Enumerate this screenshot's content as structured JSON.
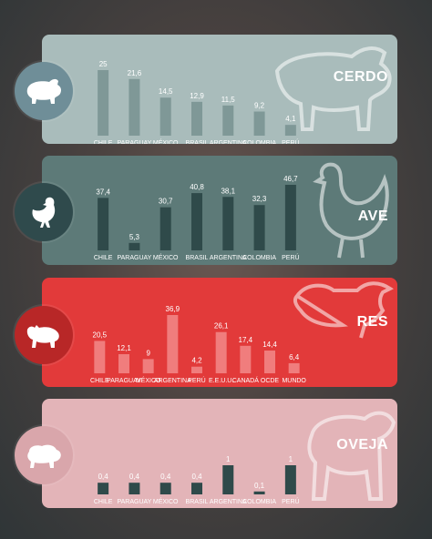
{
  "chart_data": [
    {
      "type": "bar",
      "title": "CERDO",
      "categories": [
        "CHILE",
        "PARAGUAY",
        "MÉXICO",
        "BRASIL",
        "ARGENTINA",
        "COLOMBIA",
        "PERÚ"
      ],
      "values": [
        25,
        21.6,
        14.5,
        12.9,
        11.5,
        9.2,
        4.1
      ],
      "value_labels": [
        "25",
        "21,6",
        "14,5",
        "12,9",
        "11,5",
        "9,2",
        "4,1"
      ],
      "icon": "pig-icon"
    },
    {
      "type": "bar",
      "title": "AVE",
      "categories": [
        "CHILE",
        "PARAGUAY",
        "MÉXICO",
        "BRASIL",
        "ARGENTINA",
        "COLOMBIA",
        "PERÚ"
      ],
      "values": [
        37.4,
        5.3,
        30.7,
        40.8,
        38.1,
        32.3,
        46.7
      ],
      "value_labels": [
        "37,4",
        "5,3",
        "30,7",
        "40,8",
        "38,1",
        "32,3",
        "46,7"
      ],
      "icon": "chicken-icon"
    },
    {
      "type": "bar",
      "title": "RES",
      "categories": [
        "CHILE",
        "PARAGUAY",
        "MÉXICO",
        "ARGENTINA",
        "PERÚ",
        "E.E.U.U.",
        "CANADÁ",
        "OCDE",
        "MUNDO"
      ],
      "values": [
        20.5,
        12.1,
        9,
        36.9,
        4.2,
        26.1,
        17.4,
        14.4,
        6.4
      ],
      "value_labels": [
        "20,5",
        "12,1",
        "9",
        "36,9",
        "4,2",
        "26,1",
        "17,4",
        "14,4",
        "6,4"
      ],
      "icon": "bull-icon"
    },
    {
      "type": "bar",
      "title": "OVEJA",
      "categories": [
        "CHILE",
        "PARAGUAY",
        "MÉXICO",
        "BRASIL",
        "ARGENTINA",
        "COLOMBIA",
        "PERÚ"
      ],
      "values": [
        0.4,
        0.4,
        0.4,
        0.4,
        1,
        0.1,
        1
      ],
      "value_labels": [
        "0,4",
        "0,4",
        "0,4",
        "0,4",
        "1",
        "0,1",
        "1"
      ],
      "icon": "sheep-icon"
    }
  ],
  "colors": {
    "cerdo_panel": "#a9bcbb",
    "cerdo_bar": "#7f9897",
    "cerdo_circle": "#6f8e98",
    "ave_panel": "#5d7a78",
    "ave_bar": "#2f4a4a",
    "ave_circle": "#2f4a4c",
    "res_panel": "#e23a3a",
    "res_bar": "#f07d7d",
    "res_circle": "#b82727",
    "oveja_panel": "#e3b4b8",
    "oveja_bar": "#2f4a4a",
    "oveja_circle": "#d9a6ab"
  }
}
